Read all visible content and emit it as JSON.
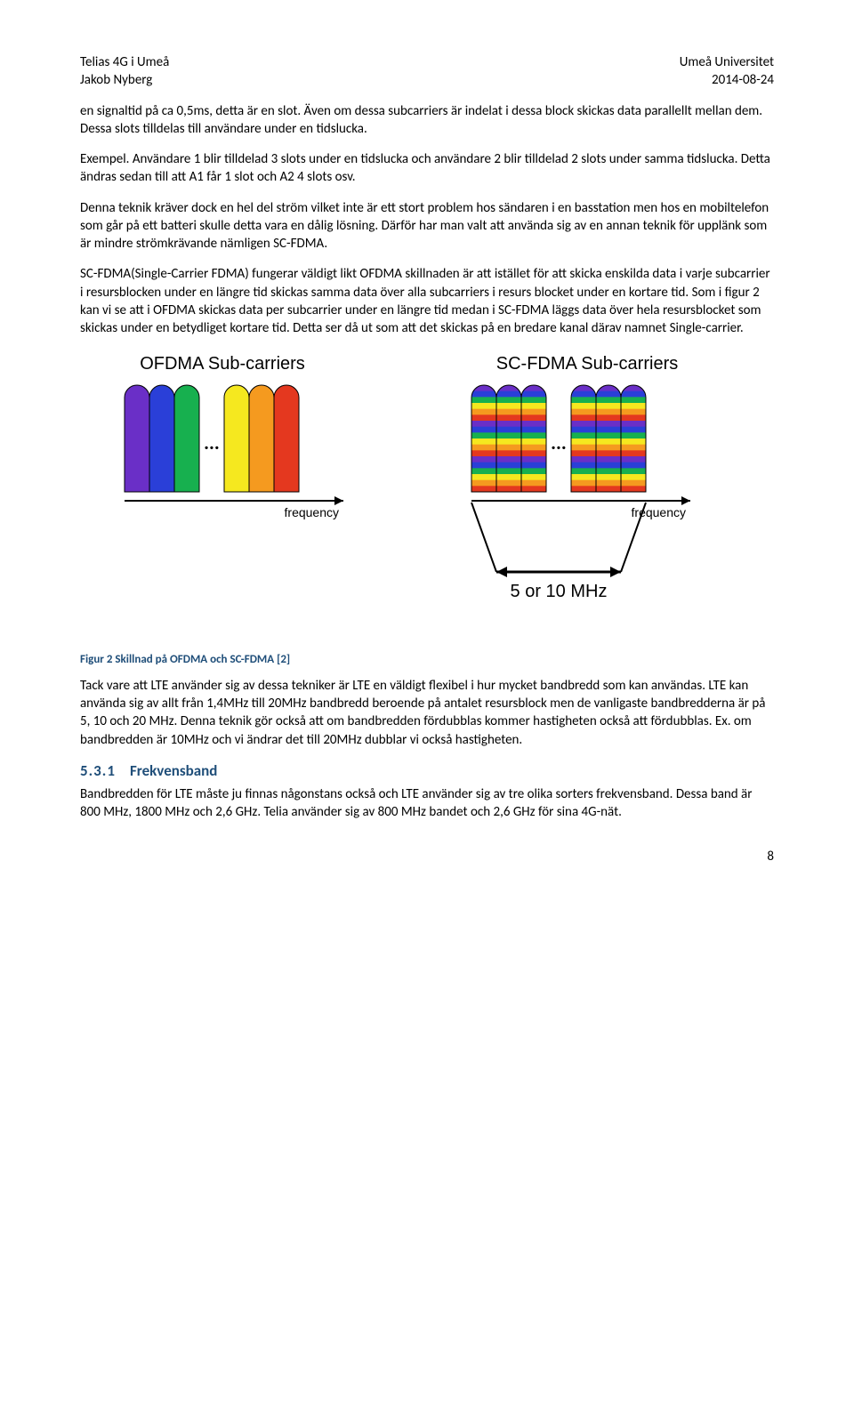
{
  "header": {
    "left1": "Telias 4G i Umeå",
    "left2": "Jakob Nyberg",
    "right1": "Umeå Universitet",
    "right2": "2014-08-24"
  },
  "paragraphs": {
    "p1": "en signaltid på ca 0,5ms, detta är en slot. Även om dessa subcarriers är indelat i dessa block skickas data parallellt mellan dem. Dessa slots tilldelas till användare under en tidslucka.",
    "p2": "Exempel. Användare 1 blir tilldelad 3 slots under en tidslucka och användare 2 blir tilldelad 2 slots under samma tidslucka. Detta ändras sedan till att A1 får 1 slot och A2 4 slots osv.",
    "p3": "Denna teknik kräver dock en hel del ström vilket inte är ett stort problem hos sändaren i en basstation men hos en mobiltelefon som går på ett batteri skulle detta vara en dålig lösning. Därför har man valt att använda sig av en annan teknik för upplänk som är mindre strömkrävande nämligen SC-FDMA.",
    "p4": "SC-FDMA(Single-Carrier FDMA) fungerar väldigt likt OFDMA skillnaden är att istället för att skicka enskilda data i varje subcarrier i resursblocken under en längre tid skickas samma data över alla subcarriers i resurs blocket under en kortare tid. Som i figur 2 kan vi se att i OFDMA skickas data per subcarrier under en längre tid medan i SC-FDMA läggs data över hela resursblocket som skickas under en betydliget kortare tid. Detta ser då ut som att det skickas på en bredare kanal därav namnet Single-carrier.",
    "caption": "Figur 2 Skillnad på OFDMA och SC-FDMA [2]",
    "p5": "Tack vare att LTE använder sig av dessa tekniker är LTE en väldigt flexibel i hur mycket bandbredd som kan användas. LTE kan använda sig av allt från 1,4MHz till 20MHz bandbredd beroende på antalet resursblock men de vanligaste bandbredderna är på 5, 10 och 20 MHz. Denna teknik gör också att om bandbredden fördubblas kommer hastigheten också att fördubblas. Ex. om bandbredden är 10MHz och vi ändrar det till 20MHz dubblar vi också hastigheten.",
    "h3_num": "5.3.1",
    "h3_title": "Frekvensband",
    "p6": "Bandbredden för LTE måste ju finnas någonstans också och LTE använder sig av tre olika sorters frekvensband. Dessa band är 800 MHz, 1800 MHz och 2,6 GHz. Telia använder sig av 800 MHz bandet och 2,6 GHz för sina 4G-nät."
  },
  "figure": {
    "title_left": "OFDMA Sub-carriers",
    "title_right": "SC-FDMA Sub-carriers",
    "axis_label": "frequency",
    "span_label": "5 or 10 MHz",
    "dots": "...",
    "carrier_width": 28,
    "carrier_height": 120,
    "group_gap": 28,
    "colors": {
      "ofdma": [
        "#6a2fc7",
        "#2a3fd8",
        "#17b04f",
        "#f5e81f",
        "#f59a1f",
        "#e4381f"
      ],
      "scfdma_stripes": [
        "#6a2fc7",
        "#2a3fd8",
        "#17b04f",
        "#f5e81f",
        "#f59a1f",
        "#e4381f"
      ],
      "outline": "#000000",
      "text": "#000000",
      "title_font": 20,
      "axis_font": 14,
      "span_font": 20
    }
  },
  "pagenum": "8"
}
